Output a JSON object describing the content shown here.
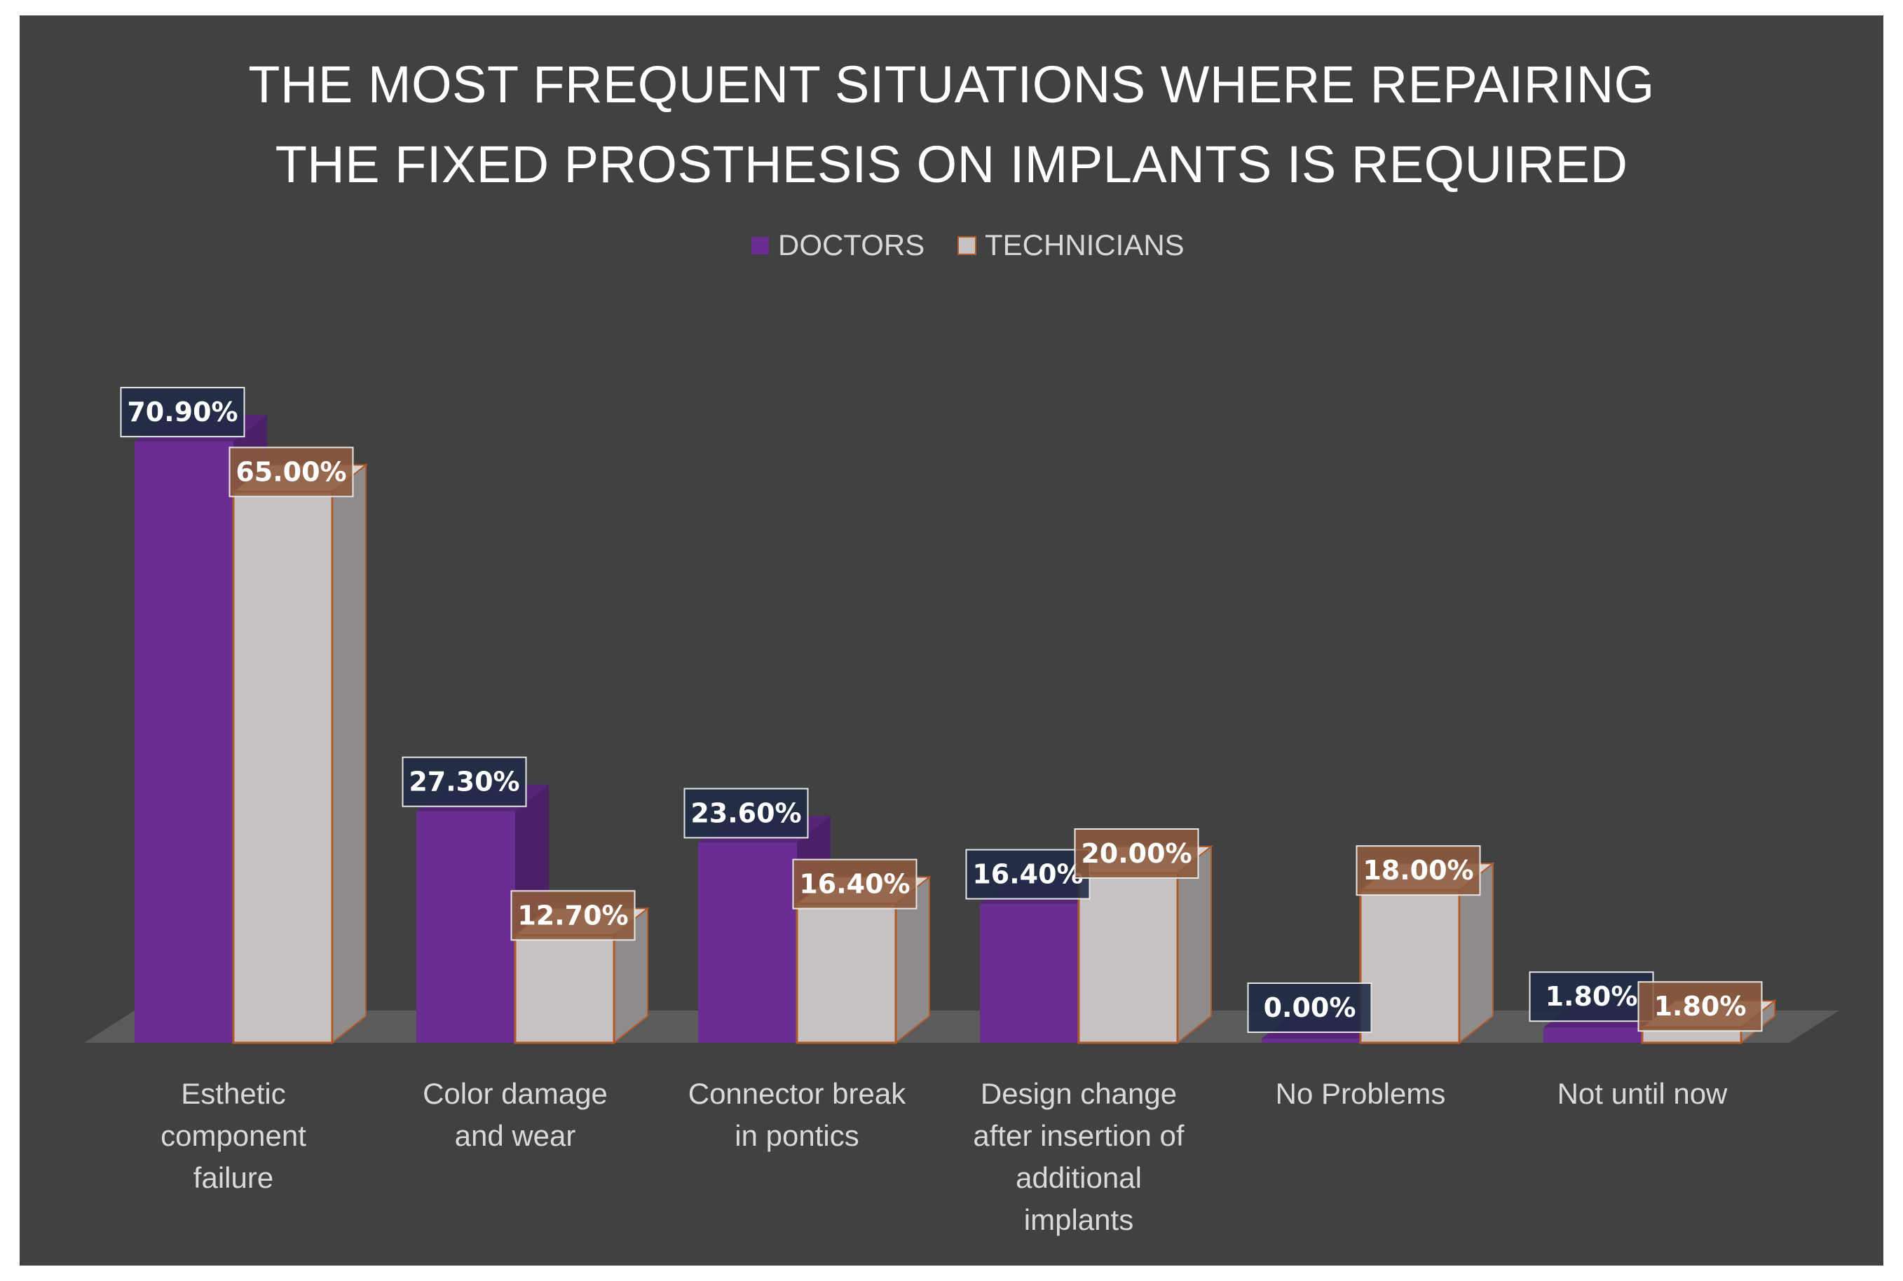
{
  "chart_data": {
    "type": "bar",
    "title_lines": [
      "THE MOST FREQUENT SITUATIONS WHERE REPAIRING",
      "THE FIXED PROSTHESIS ON IMPLANTS IS REQUIRED"
    ],
    "categories": [
      [
        "Esthetic",
        "component",
        "failure"
      ],
      [
        "Color damage",
        "and wear"
      ],
      [
        "Connector break",
        "in pontics"
      ],
      [
        "Design change",
        "after insertion of",
        "additional",
        "implants"
      ],
      [
        "No Problems"
      ],
      [
        "Not until now"
      ]
    ],
    "series": [
      {
        "name": "DOCTORS",
        "values": [
          70.9,
          27.3,
          23.6,
          16.4,
          0.0,
          1.8
        ],
        "labels": [
          "70.90%",
          "27.30%",
          "23.60%",
          "16.40%",
          "0.00%",
          "1.80%"
        ],
        "color": "#6a2d91"
      },
      {
        "name": "TECHNICIANS",
        "values": [
          65.0,
          12.7,
          16.4,
          20.0,
          18.0,
          1.8
        ],
        "labels": [
          "65.00%",
          "12.70%",
          "16.40%",
          "20.00%",
          "18.00%",
          "1.80%"
        ],
        "color": "#c7c1c1"
      }
    ],
    "xlabel": "",
    "ylabel": "",
    "ylim": [
      0,
      75
    ],
    "legend_position": "top",
    "grid": false
  },
  "colors": {
    "background": "#414141",
    "floor": "#5b5b5b",
    "doctors_label_bg": "#1f2a44",
    "technicians_label_bg": "#8c5a3c",
    "technicians_edge": "#b05a2a"
  }
}
